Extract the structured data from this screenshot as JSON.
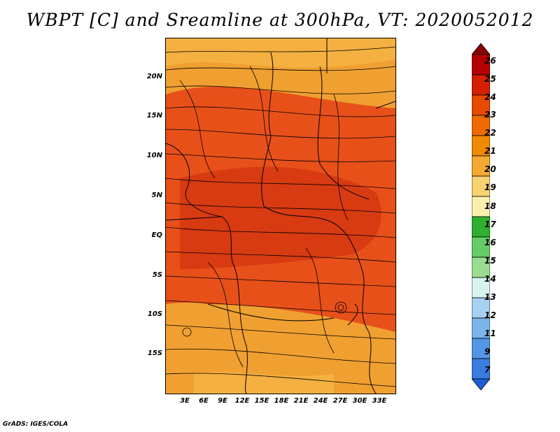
{
  "title": "WBPT [C] and Sreamline at 300hPa, VT: 2020052012",
  "credit": "GrADS: IGES/COLA",
  "lat_labels": [
    "20N",
    "15N",
    "10N",
    "5N",
    "EQ",
    "5S",
    "10S",
    "15S"
  ],
  "lon_labels": [
    "3E",
    "6E",
    "9E",
    "12E",
    "15E",
    "18E",
    "21E",
    "24E",
    "27E",
    "30E",
    "33E"
  ],
  "colorbar": {
    "labels": [
      "26",
      "25",
      "24",
      "23",
      "22",
      "21",
      "20",
      "19",
      "18",
      "17",
      "16",
      "15",
      "14",
      "13",
      "12",
      "11",
      "9",
      "7"
    ],
    "colors": [
      "#8b0000",
      "#b40000",
      "#d42000",
      "#e84a00",
      "#f06a00",
      "#f08a00",
      "#f4aa30",
      "#f7d270",
      "#fbefae",
      "#2fb030",
      "#66cc66",
      "#9bdd90",
      "#d7f3ee",
      "#a8d0f2",
      "#7ab5ec",
      "#5396e6",
      "#3a7ce0",
      "#1e5fd6"
    ]
  },
  "colors": {
    "map_orange": "#f0a030",
    "map_red": "#e8501a",
    "map_darkred": "#d83010"
  }
}
